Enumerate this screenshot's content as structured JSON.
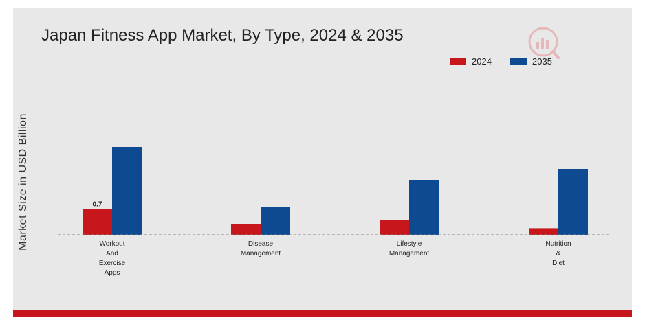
{
  "chart_data": {
    "type": "bar",
    "title": "Japan Fitness App Market, By Type, 2024 & 2035",
    "xlabel": "",
    "ylabel": "Market Size in USD Billion",
    "ylim": [
      0,
      3.0
    ],
    "categories": [
      [
        "Workout",
        "And",
        "Exercise",
        "Apps"
      ],
      [
        "Disease",
        "Management"
      ],
      [
        "Lifestyle",
        "Management"
      ],
      [
        "Nutrition",
        "&",
        "Diet"
      ]
    ],
    "series": [
      {
        "name": "2024",
        "color": "#c8161d",
        "values": [
          0.7,
          0.3,
          0.4,
          0.18
        ]
      },
      {
        "name": "2035",
        "color": "#0e4a91",
        "values": [
          2.4,
          0.75,
          1.5,
          1.8
        ]
      }
    ],
    "data_labels": [
      {
        "series": 0,
        "index": 0,
        "text": "0.7"
      }
    ],
    "legend": {
      "position": "top-right"
    },
    "grid": false
  }
}
